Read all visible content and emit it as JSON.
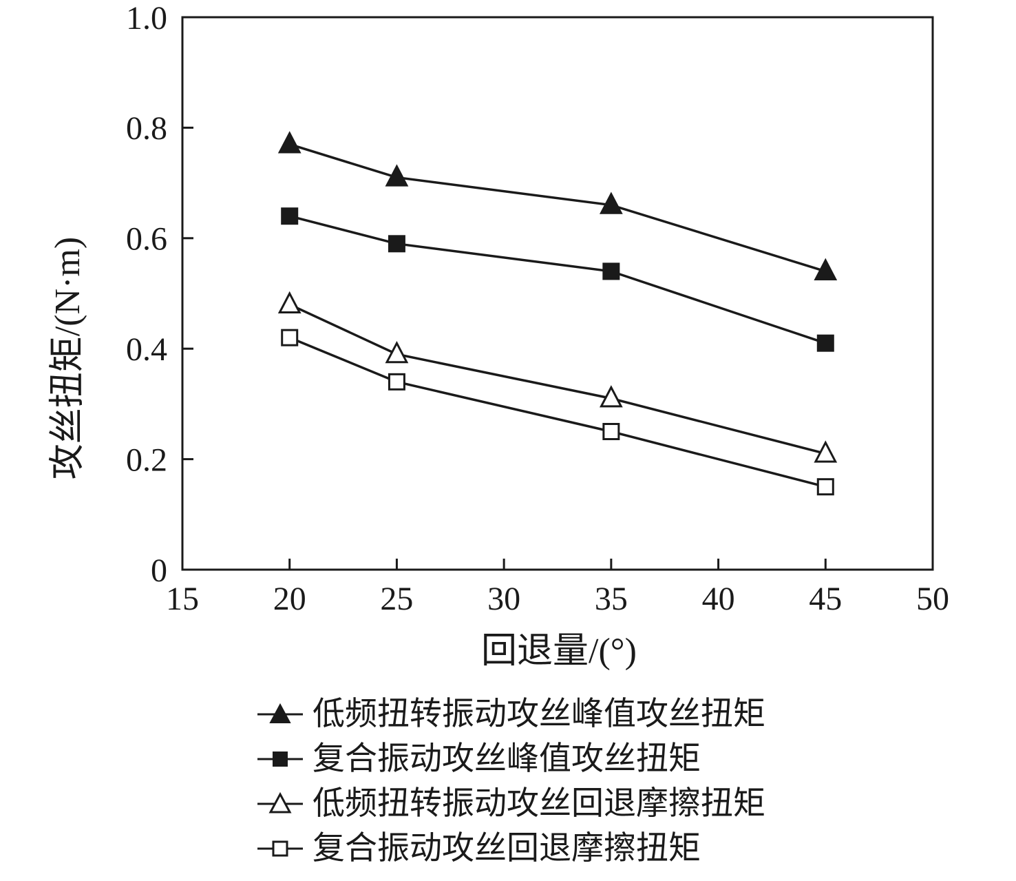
{
  "chart_data": {
    "type": "line",
    "title": "",
    "xlabel": "回退量/(°)",
    "ylabel": "攻丝扭矩/(N·m)",
    "xlim": [
      15,
      50
    ],
    "ylim": [
      0,
      1.0
    ],
    "x_ticks": [
      15,
      20,
      25,
      30,
      35,
      40,
      45,
      50
    ],
    "y_ticks": [
      0,
      0.2,
      0.4,
      0.6,
      0.8,
      1.0
    ],
    "y_tick_labels": [
      "0",
      "0.2",
      "0.4",
      "0.6",
      "0.8",
      "1.0"
    ],
    "grid": false,
    "legend_position": "below-chart",
    "line_color": "#1a1a1a",
    "x": [
      20,
      25,
      35,
      45
    ],
    "series": [
      {
        "name": "低频扭转振动攻丝峰值攻丝扭矩",
        "marker": "triangle-filled",
        "values": [
          0.77,
          0.71,
          0.66,
          0.54
        ]
      },
      {
        "name": "复合振动攻丝峰值攻丝扭矩",
        "marker": "square-filled",
        "values": [
          0.64,
          0.59,
          0.54,
          0.41
        ]
      },
      {
        "name": "低频扭转振动攻丝回退摩擦扭矩",
        "marker": "triangle-open",
        "values": [
          0.48,
          0.39,
          0.31,
          0.21
        ]
      },
      {
        "name": "复合振动攻丝回退摩擦扭矩",
        "marker": "square-open",
        "values": [
          0.42,
          0.34,
          0.25,
          0.15
        ]
      }
    ]
  }
}
